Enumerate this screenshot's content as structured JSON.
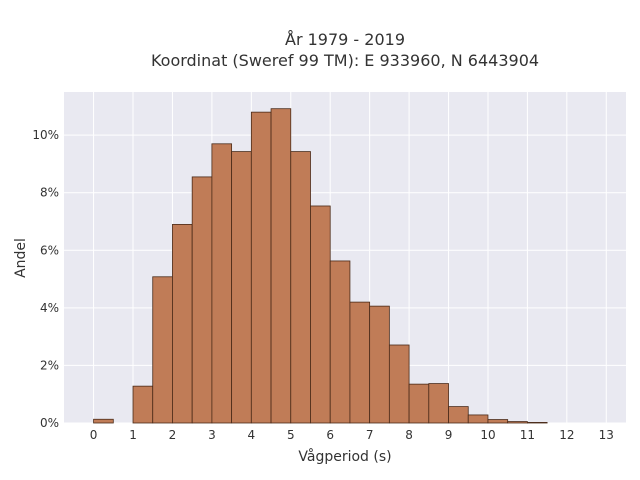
{
  "chart_data": {
    "type": "bar",
    "title": "År 1979 - 2019",
    "subtitle": "Koordinat (Sweref 99 TM): E 933960, N 6443904",
    "xlabel": "Vågperiod (s)",
    "ylabel": "Andel",
    "xlim": [
      -0.75,
      13.5
    ],
    "ylim": [
      0,
      0.115
    ],
    "x_ticks": [
      0,
      1,
      2,
      3,
      4,
      5,
      6,
      7,
      8,
      9,
      10,
      11,
      12,
      13
    ],
    "x_tick_labels": [
      "0",
      "1",
      "2",
      "3",
      "4",
      "5",
      "6",
      "7",
      "8",
      "9",
      "10",
      "11",
      "12",
      "13"
    ],
    "y_ticks": [
      0,
      0.02,
      0.04,
      0.06,
      0.08,
      0.1
    ],
    "y_tick_labels": [
      "0%",
      "2%",
      "4%",
      "6%",
      "8%",
      "10%"
    ],
    "bin_width": 0.5,
    "bins": [
      {
        "x0": 0.0,
        "value": 0.0013
      },
      {
        "x0": 1.0,
        "value": 0.0128
      },
      {
        "x0": 1.5,
        "value": 0.0508
      },
      {
        "x0": 2.0,
        "value": 0.069
      },
      {
        "x0": 2.5,
        "value": 0.0855
      },
      {
        "x0": 3.0,
        "value": 0.097
      },
      {
        "x0": 3.5,
        "value": 0.0943
      },
      {
        "x0": 4.0,
        "value": 0.108
      },
      {
        "x0": 4.5,
        "value": 0.1092
      },
      {
        "x0": 5.0,
        "value": 0.0943
      },
      {
        "x0": 5.5,
        "value": 0.0754
      },
      {
        "x0": 6.0,
        "value": 0.0563
      },
      {
        "x0": 6.5,
        "value": 0.042
      },
      {
        "x0": 7.0,
        "value": 0.0406
      },
      {
        "x0": 7.5,
        "value": 0.0271
      },
      {
        "x0": 8.0,
        "value": 0.0135
      },
      {
        "x0": 8.5,
        "value": 0.0137
      },
      {
        "x0": 9.0,
        "value": 0.0057
      },
      {
        "x0": 9.5,
        "value": 0.0028
      },
      {
        "x0": 10.0,
        "value": 0.0012
      },
      {
        "x0": 10.5,
        "value": 0.0005
      },
      {
        "x0": 11.0,
        "value": 0.0002
      }
    ],
    "bar_color": "#c07c57",
    "bar_edge_color": "#4a2a18",
    "plot_background": "#e9e9f1",
    "grid": true,
    "legend": false
  }
}
